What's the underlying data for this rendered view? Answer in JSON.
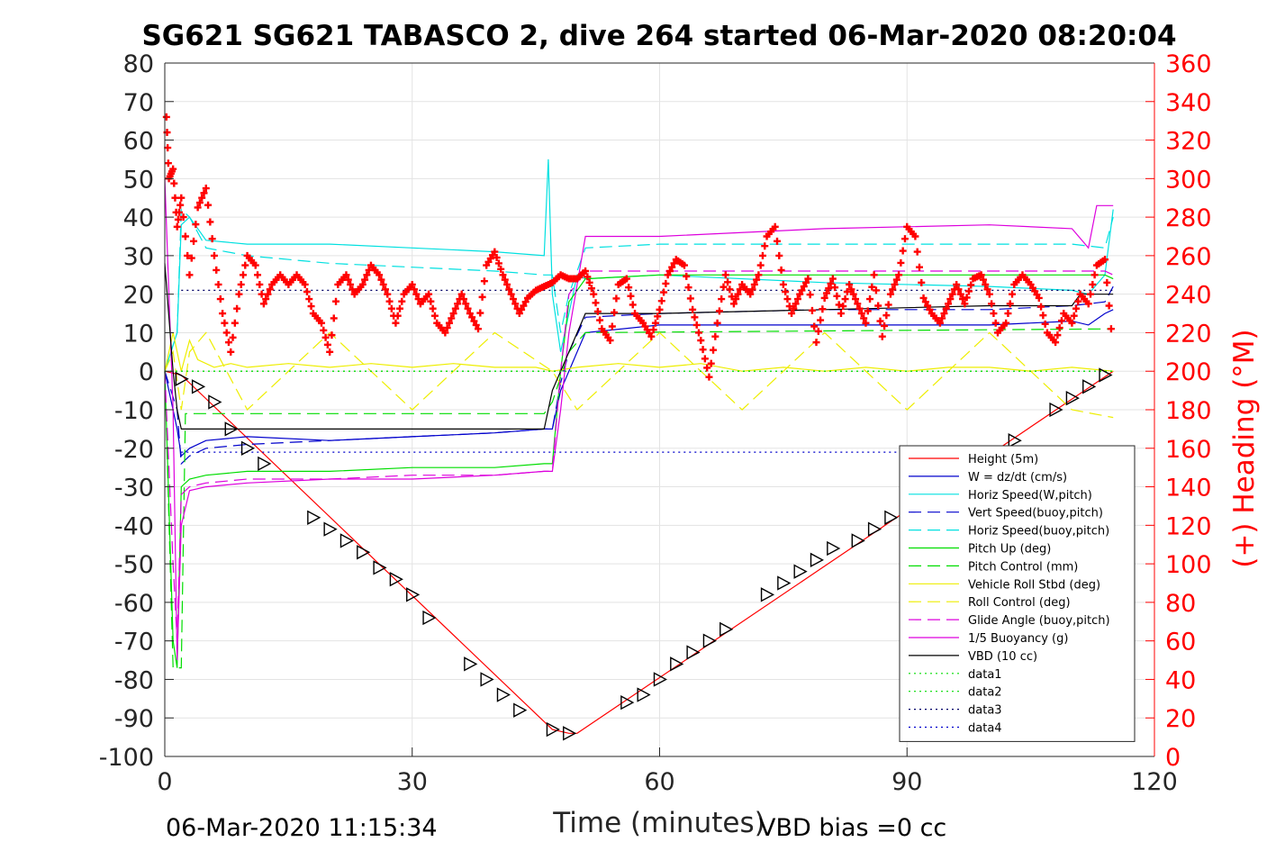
{
  "chart_data": {
    "type": "line",
    "title": "SG621 SG621 TABASCO 2, dive 264 started 06-Mar-2020 08:20:04",
    "xlabel": "Time (minutes)",
    "ylabel": "",
    "y2label": "(+) Heading (°M)",
    "xlim": [
      0,
      120
    ],
    "ylim": [
      -100,
      80
    ],
    "y2lim": [
      0,
      360
    ],
    "xticks": [
      "0",
      "30",
      "60",
      "90",
      "120"
    ],
    "yticks": [
      "80",
      "70",
      "60",
      "50",
      "40",
      "30",
      "20",
      "10",
      "0",
      "-10",
      "-20",
      "-30",
      "-40",
      "-50",
      "-60",
      "-70",
      "-80",
      "-90",
      "-100"
    ],
    "y2ticks": [
      "360",
      "340",
      "320",
      "300",
      "280",
      "260",
      "240",
      "220",
      "200",
      "180",
      "160",
      "140",
      "120",
      "100",
      "80",
      "60",
      "40",
      "20",
      "0"
    ],
    "grid": true,
    "legend_position": "bottom-right",
    "footer_left": "06-Mar-2020 11:15:34",
    "footer_right": "VBD bias =0 cc",
    "series": [
      {
        "name": "Height (5m)",
        "color": "#ff0000",
        "style": "solid",
        "x": [
          0,
          2,
          47,
          49,
          50,
          115
        ],
        "y": [
          0,
          -1,
          -93,
          -94,
          -94,
          0
        ]
      },
      {
        "name": "W = dz/dt (cm/s)",
        "color": "#0000cc",
        "style": "solid",
        "x": [
          0,
          1.5,
          2,
          3,
          5,
          10,
          20,
          30,
          40,
          46,
          47,
          48,
          49,
          50,
          51,
          60,
          80,
          100,
          110,
          112,
          114,
          115
        ],
        "y": [
          0,
          -15,
          -22,
          -20,
          -18,
          -17,
          -18,
          -17,
          -16,
          -15,
          -15,
          -5,
          0,
          5,
          10,
          12,
          12,
          12,
          13,
          12,
          15,
          16
        ]
      },
      {
        "name": "Horiz Speed(W,pitch)",
        "color": "#00e0e0",
        "style": "solid",
        "x": [
          0,
          1.5,
          2,
          3,
          5,
          10,
          20,
          30,
          40,
          46,
          46.5,
          47,
          48,
          49,
          50,
          51,
          60,
          80,
          100,
          110,
          112,
          114,
          115
        ],
        "y": [
          0,
          10,
          38,
          40,
          34,
          33,
          33,
          32,
          31,
          30,
          55,
          20,
          5,
          15,
          25,
          24,
          25,
          23,
          22,
          21,
          20,
          25,
          42
        ]
      },
      {
        "name": "Vert Speed(buoy,pitch)",
        "color": "#0000cc",
        "style": "dash",
        "x": [
          0,
          1.5,
          2,
          3,
          5,
          10,
          20,
          30,
          40,
          46,
          47,
          48,
          49,
          51,
          60,
          80,
          100,
          110,
          114,
          115
        ],
        "y": [
          0,
          -10,
          -24,
          -22,
          -20,
          -19,
          -18,
          -17,
          -16,
          -15,
          -15,
          -3,
          5,
          14,
          15,
          16,
          16,
          17,
          18,
          22
        ]
      },
      {
        "name": "Horiz Speed(buoy,pitch)",
        "color": "#00e0e0",
        "style": "dash",
        "x": [
          0,
          1.5,
          2,
          3,
          5,
          10,
          20,
          30,
          40,
          46,
          47,
          48,
          49,
          51,
          60,
          80,
          100,
          110,
          114,
          115
        ],
        "y": [
          0,
          10,
          42,
          40,
          32,
          30,
          28,
          27,
          26,
          25,
          25,
          10,
          20,
          32,
          33,
          33,
          33,
          33,
          32,
          40
        ]
      },
      {
        "name": "Pitch Up (deg)",
        "color": "#00dd00",
        "style": "solid",
        "x": [
          0,
          1,
          1.5,
          2,
          3,
          5,
          10,
          20,
          30,
          40,
          46,
          47,
          48,
          49,
          51,
          60,
          80,
          100,
          110,
          114,
          115
        ],
        "y": [
          0,
          -70,
          -77,
          -30,
          -28,
          -27,
          -26,
          -26,
          -25,
          -25,
          -24,
          -24,
          0,
          18,
          24,
          25,
          25,
          25,
          25,
          25,
          24
        ]
      },
      {
        "name": "Pitch Control (mm)",
        "color": "#00dd00",
        "style": "dash",
        "x": [
          0,
          1,
          2,
          2.5,
          46,
          47,
          49,
          51,
          115
        ],
        "y": [
          0,
          -77,
          -77,
          -11,
          -11,
          -8,
          5,
          10,
          11
        ]
      },
      {
        "name": "Vehicle Roll Stbd (deg)",
        "color": "#eeee00",
        "style": "solid",
        "x": [
          0,
          1,
          2,
          3,
          4,
          6,
          8,
          10,
          15,
          20,
          25,
          30,
          35,
          40,
          45,
          47,
          50,
          55,
          60,
          65,
          70,
          75,
          80,
          85,
          90,
          95,
          100,
          105,
          110,
          115
        ],
        "y": [
          0,
          10,
          0,
          8,
          3,
          1,
          2,
          1,
          2,
          1,
          2,
          1,
          2,
          1,
          1,
          0,
          1,
          2,
          1,
          2,
          0,
          1,
          0,
          1,
          0,
          1,
          1,
          0,
          1,
          0
        ]
      },
      {
        "name": "Roll Control (deg)",
        "color": "#eeee00",
        "style": "dash",
        "x": [
          0,
          1,
          2,
          3,
          5,
          10,
          20,
          30,
          40,
          47,
          50,
          60,
          70,
          80,
          90,
          100,
          110,
          115
        ],
        "y": [
          0,
          5,
          -10,
          5,
          10,
          -10,
          10,
          -10,
          10,
          0,
          -10,
          10,
          -10,
          10,
          -10,
          10,
          -10,
          -12
        ]
      },
      {
        "name": "Glide Angle (buoy,pitch)",
        "color": "#dd00dd",
        "style": "dash",
        "x": [
          0,
          1,
          1.5,
          2,
          3,
          5,
          10,
          20,
          30,
          40,
          46,
          47,
          48,
          49,
          51,
          60,
          80,
          100,
          110,
          114,
          115
        ],
        "y": [
          0,
          -50,
          -70,
          -32,
          -30,
          -29,
          -28,
          -28,
          -27,
          -27,
          -26,
          -26,
          0,
          20,
          26,
          26,
          26,
          26,
          26,
          26,
          25
        ]
      },
      {
        "name": "1/5 Buoyancy (g)",
        "color": "#dd00dd",
        "style": "solid",
        "x": [
          0,
          1,
          1.5,
          2,
          3,
          5,
          10,
          20,
          30,
          40,
          46,
          47,
          48,
          49,
          51,
          60,
          80,
          100,
          110,
          112,
          113,
          115
        ],
        "y": [
          50,
          -10,
          -75,
          -40,
          -31,
          -30,
          -29,
          -28,
          -28,
          -27,
          -26,
          -26,
          -10,
          10,
          35,
          35,
          37,
          38,
          37,
          32,
          43,
          43
        ]
      },
      {
        "name": "VBD (10 cc)",
        "color": "#000000",
        "style": "solid",
        "x": [
          0,
          1,
          1.5,
          2,
          46,
          47,
          48,
          49,
          51,
          60,
          80,
          100,
          110,
          111,
          115
        ],
        "y": [
          28,
          0,
          -10,
          -15,
          -15,
          -5,
          0,
          5,
          15,
          15,
          16,
          17,
          17,
          20,
          20
        ]
      },
      {
        "name": "data1",
        "color": "#00dd00",
        "style": "dot",
        "x": [
          0,
          115
        ],
        "y": [
          0,
          0
        ]
      },
      {
        "name": "data2",
        "color": "#00dd00",
        "style": "dot",
        "x": [
          0,
          115
        ],
        "y": [
          0,
          0
        ]
      },
      {
        "name": "data3",
        "color": "#000066",
        "style": "dot",
        "x": [
          2,
          115
        ],
        "y": [
          21,
          21
        ]
      },
      {
        "name": "data4",
        "color": "#0000cc",
        "style": "dot",
        "x": [
          2,
          115
        ],
        "y": [
          -21,
          -21
        ]
      }
    ],
    "heading": {
      "axis": "right",
      "color": "#ff0000",
      "marker": "+",
      "x": [
        0.2,
        0.5,
        1,
        1.5,
        2,
        3,
        4,
        5,
        6,
        7,
        8,
        9,
        10,
        11,
        12,
        13,
        14,
        15,
        16,
        17,
        18,
        19,
        20,
        21,
        22,
        23,
        24,
        25,
        26,
        27,
        28,
        29,
        30,
        31,
        32,
        33,
        34,
        35,
        36,
        37,
        38,
        39,
        40,
        41,
        42,
        43,
        44,
        45,
        46,
        47,
        48,
        49,
        50,
        51,
        52,
        53,
        54,
        55,
        56,
        57,
        58,
        59,
        60,
        61,
        62,
        63,
        64,
        65,
        66,
        67,
        68,
        69,
        70,
        71,
        72,
        73,
        74,
        75,
        76,
        77,
        78,
        79,
        80,
        81,
        82,
        83,
        84,
        85,
        86,
        87,
        88,
        89,
        90,
        91,
        92,
        93,
        94,
        95,
        96,
        97,
        98,
        99,
        100,
        101,
        102,
        103,
        104,
        105,
        106,
        107,
        108,
        109,
        110,
        111,
        112,
        113,
        114,
        115
      ],
      "y": [
        332,
        300,
        305,
        275,
        290,
        250,
        285,
        295,
        260,
        230,
        210,
        240,
        260,
        255,
        235,
        245,
        250,
        245,
        250,
        245,
        230,
        225,
        210,
        245,
        250,
        240,
        245,
        255,
        250,
        240,
        225,
        240,
        245,
        235,
        240,
        225,
        220,
        230,
        240,
        230,
        222,
        255,
        262,
        250,
        240,
        230,
        238,
        242,
        244,
        246,
        250,
        248,
        248,
        252,
        240,
        222,
        216,
        245,
        248,
        230,
        225,
        218,
        232,
        250,
        258,
        255,
        232,
        216,
        197,
        225,
        250,
        235,
        245,
        240,
        250,
        270,
        275,
        245,
        230,
        240,
        248,
        215,
        238,
        248,
        230,
        245,
        235,
        225,
        250,
        218,
        240,
        250,
        275,
        270,
        238,
        230,
        225,
        235,
        245,
        235,
        248,
        250,
        240,
        220,
        225,
        245,
        250,
        245,
        238,
        220,
        215,
        230,
        225,
        240,
        235,
        255,
        258,
        210
      ]
    },
    "markers": {
      "shape": "triangle",
      "color": "#000000",
      "points_x": [
        2,
        4,
        6,
        8,
        10,
        12,
        18,
        20,
        22,
        24,
        26,
        28,
        30,
        32,
        37,
        39,
        41,
        43,
        47,
        49,
        56,
        58,
        60,
        62,
        64,
        66,
        68,
        73,
        75,
        77,
        79,
        81,
        84,
        86,
        88,
        103,
        108,
        110,
        112,
        114
      ],
      "points_y": [
        -2,
        -4,
        -8,
        -15,
        -20,
        -24,
        -38,
        -41,
        -44,
        -47,
        -51,
        -54,
        -58,
        -64,
        -76,
        -80,
        -84,
        -88,
        -93,
        -94,
        -86,
        -84,
        -80,
        -76,
        -73,
        -70,
        -67,
        -58,
        -55,
        -52,
        -49,
        -46,
        -44,
        -41,
        -38,
        -18,
        -10,
        -7,
        -4,
        -1
      ]
    }
  }
}
